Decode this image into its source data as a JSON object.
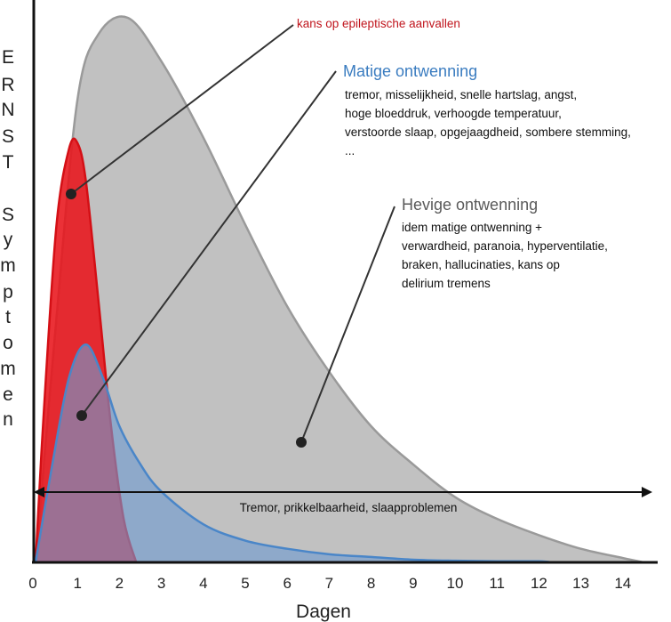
{
  "chart_data": {
    "type": "area",
    "xlabel": "Dagen",
    "ylabel": "ERNST Symptomen",
    "ylabel_letters": [
      "E",
      "R",
      "N",
      "S",
      "T",
      "",
      "S",
      "y",
      "m",
      "p",
      "t",
      "o",
      "m",
      "e",
      "n"
    ],
    "x_ticks": [
      0,
      1,
      2,
      3,
      4,
      5,
      6,
      7,
      8,
      9,
      10,
      11,
      12,
      13,
      14
    ],
    "xlim": [
      0,
      14.5
    ],
    "ylim": [
      0,
      1
    ],
    "series": [
      {
        "key": "severe",
        "color": "#a9a9a9",
        "points": [
          [
            0,
            0
          ],
          [
            0.5,
            0.45
          ],
          [
            1.0,
            0.85
          ],
          [
            1.5,
            0.97
          ],
          [
            2.2,
            1.0
          ],
          [
            3,
            0.92
          ],
          [
            4,
            0.78
          ],
          [
            5,
            0.62
          ],
          [
            6,
            0.47
          ],
          [
            7,
            0.35
          ],
          [
            8,
            0.25
          ],
          [
            9,
            0.18
          ],
          [
            10,
            0.12
          ],
          [
            11,
            0.08
          ],
          [
            12,
            0.05
          ],
          [
            13,
            0.025
          ],
          [
            14,
            0.008
          ],
          [
            14.5,
            0
          ]
        ]
      },
      {
        "key": "seizure",
        "color": "#e8141b",
        "points": [
          [
            0,
            0
          ],
          [
            0.2,
            0.28
          ],
          [
            0.5,
            0.62
          ],
          [
            0.8,
            0.76
          ],
          [
            1.0,
            0.77
          ],
          [
            1.2,
            0.7
          ],
          [
            1.5,
            0.48
          ],
          [
            1.8,
            0.25
          ],
          [
            2.1,
            0.08
          ],
          [
            2.4,
            0
          ]
        ]
      },
      {
        "key": "moderate",
        "color": "#6f9bd0",
        "points": [
          [
            0,
            0
          ],
          [
            0.4,
            0.18
          ],
          [
            0.8,
            0.34
          ],
          [
            1.2,
            0.4
          ],
          [
            1.6,
            0.34
          ],
          [
            2,
            0.25
          ],
          [
            2.5,
            0.18
          ],
          [
            3,
            0.13
          ],
          [
            4,
            0.07
          ],
          [
            5,
            0.04
          ],
          [
            6,
            0.025
          ],
          [
            7,
            0.015
          ],
          [
            8,
            0.01
          ],
          [
            9,
            0.005
          ],
          [
            10,
            0.003
          ],
          [
            11,
            0.002
          ],
          [
            12,
            0.002
          ],
          [
            12.3,
            0
          ]
        ]
      }
    ],
    "annotations": {
      "seizure_label": "kans op epileptische aanvallen",
      "seizure_color": "#c0151d",
      "moderate_title": "Matige ontwenning",
      "moderate_color": "#3a7cc0",
      "moderate_body": [
        "tremor, misselijkheid, snelle hartslag, angst,",
        "hoge bloeddruk, verhoogde temperatuur,",
        "verstoorde slaap, opgejaagdheid, sombere stemming,",
        "..."
      ],
      "severe_title": "Hevige ontwenning",
      "severe_color": "#5a5a5a",
      "severe_body": [
        "idem matige ontwenning +",
        "verwardheid, paranoia, hyperventilatie,",
        "braken, hallucinaties, kans op",
        "delirium tremens"
      ],
      "baseline_text": "Tremor, prikkelbaarheid, slaapproblemen"
    }
  }
}
